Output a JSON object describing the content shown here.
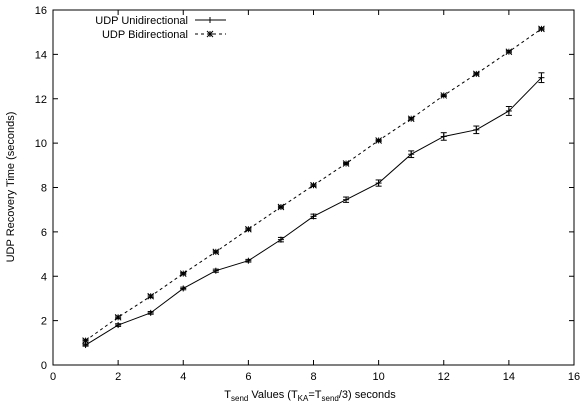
{
  "chart_data": {
    "type": "line",
    "title": "",
    "ylabel": "UDP Recovery Time (seconds)",
    "xlabel": {
      "main_prefix": "T",
      "main_sub": "send",
      "values_word": " Values (T",
      "ka_sub": "KA",
      "eq": "=T",
      "send_sub2": "send",
      "tail": "/3) seconds"
    },
    "xlim": [
      0,
      16
    ],
    "ylim": [
      0,
      16
    ],
    "xticks": [
      0,
      2,
      4,
      6,
      8,
      10,
      12,
      14,
      16
    ],
    "yticks": [
      0,
      2,
      4,
      6,
      8,
      10,
      12,
      14,
      16
    ],
    "grid": false,
    "legend_position": "top-left",
    "x": [
      1,
      2,
      3,
      4,
      5,
      6,
      7,
      8,
      9,
      10,
      11,
      12,
      13,
      14,
      15
    ],
    "series": [
      {
        "name": "UDP Unidirectional",
        "style": "solid",
        "marker": "plus",
        "values": [
          0.9,
          1.8,
          2.35,
          3.45,
          4.25,
          4.7,
          5.65,
          6.7,
          7.45,
          8.2,
          9.5,
          10.3,
          10.6,
          11.45,
          12.95
        ],
        "errors": [
          0.05,
          0.06,
          0.06,
          0.06,
          0.07,
          0.06,
          0.1,
          0.1,
          0.12,
          0.14,
          0.15,
          0.17,
          0.17,
          0.2,
          0.22
        ]
      },
      {
        "name": "UDP Bidirectional",
        "style": "dashed",
        "marker": "star",
        "values": [
          1.1,
          2.15,
          3.1,
          4.12,
          5.1,
          6.12,
          7.12,
          8.1,
          9.08,
          10.12,
          11.1,
          12.15,
          13.12,
          14.12,
          15.15
        ],
        "errors": [
          0.06,
          0.06,
          0.06,
          0.05,
          0.05,
          0.05,
          0.05,
          0.05,
          0.05,
          0.05,
          0.05,
          0.05,
          0.05,
          0.05,
          0.05
        ]
      }
    ]
  }
}
